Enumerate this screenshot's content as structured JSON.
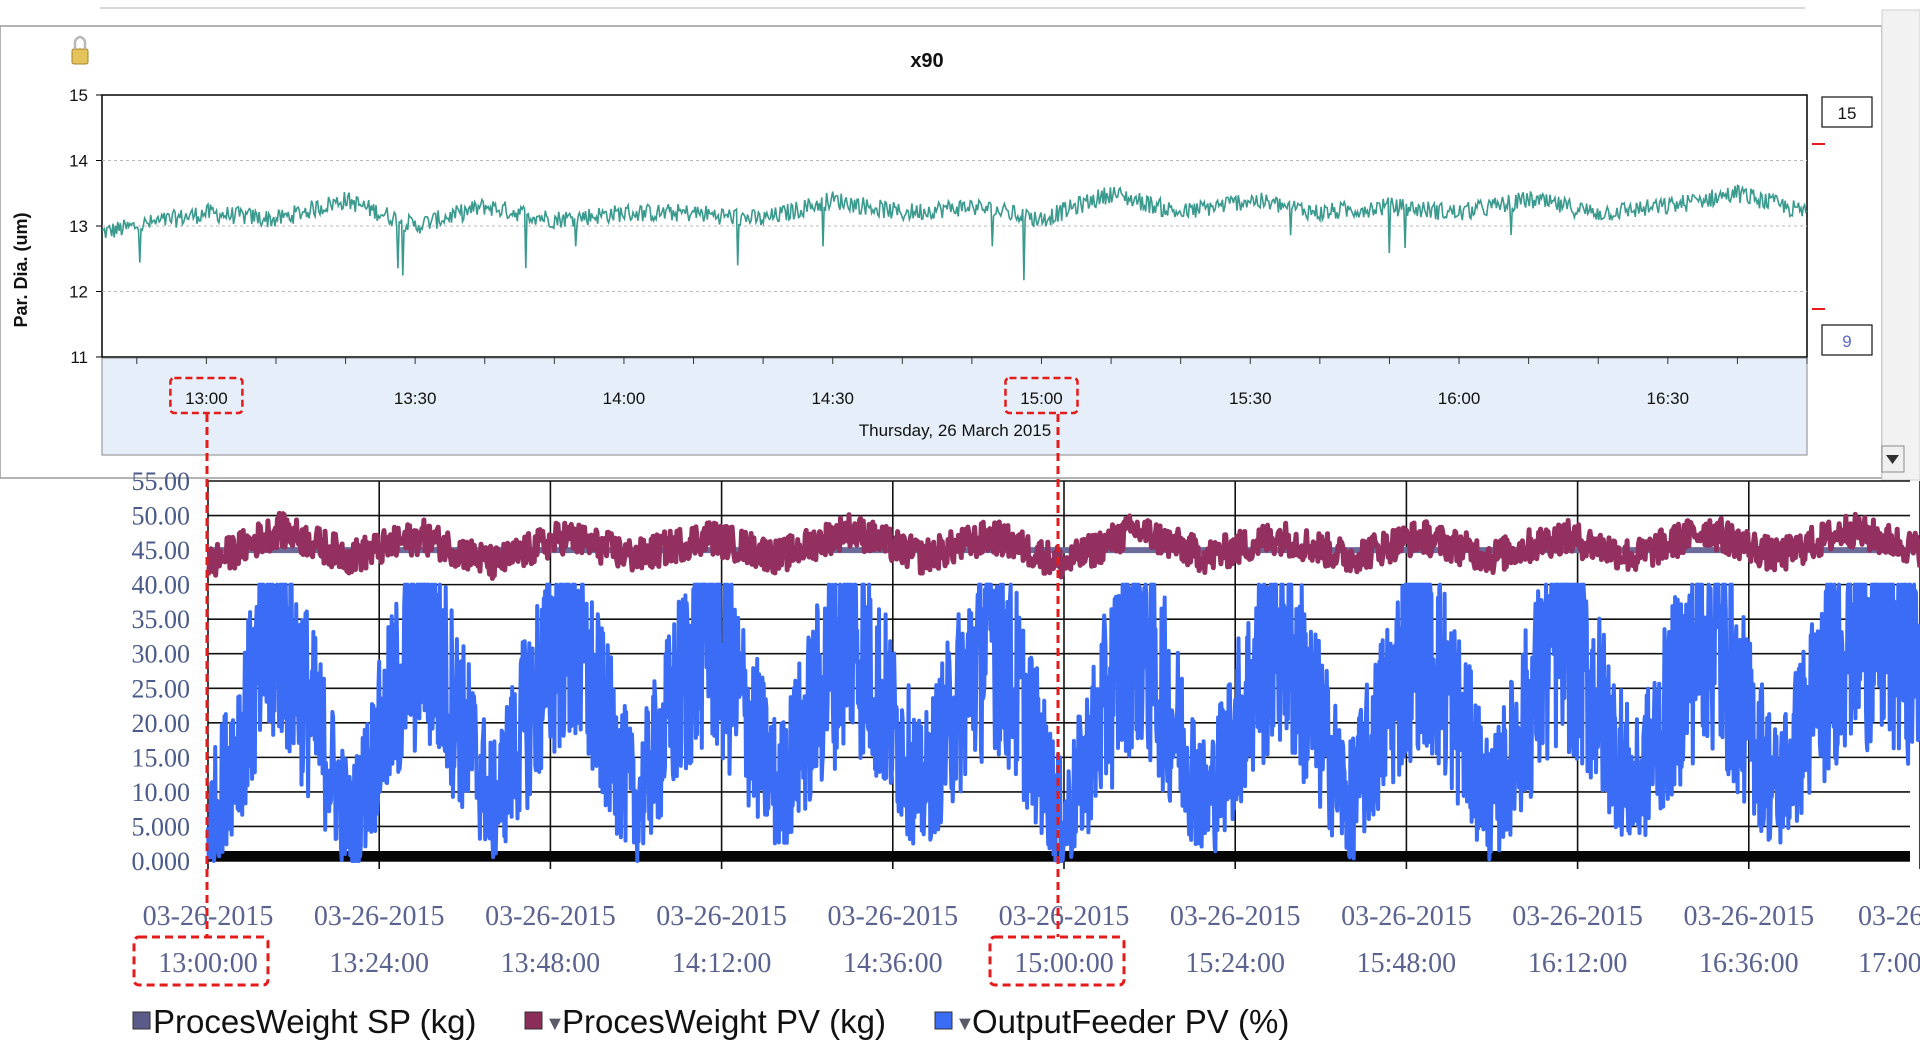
{
  "top_chart": {
    "title": "x90",
    "ylabel": "Par. Dia. (um)",
    "date_label": "Thursday, 26 March 2015",
    "right_box_top": "15",
    "right_box_bottom": "9",
    "lock_icon": "lock-icon",
    "scroll_icon": "scroll-down-arrow-icon"
  },
  "bottom_legend": [
    {
      "name": "ProcesWeight SP (kg)",
      "color": "#5b5b8a",
      "marker": ""
    },
    {
      "name": "ProcesWeight PV (kg)",
      "color": "#8b2d59",
      "marker": "▼"
    },
    {
      "name": "OutputFeeder PV (%)",
      "color": "#3b6cf5",
      "marker": "▼"
    }
  ],
  "colors": {
    "teal_series": "#3a9a8e",
    "sp_series": "#6b6b9a",
    "pv_series": "#93305f",
    "feeder_series": "#3b6cf5",
    "highlight": "#e31b1b",
    "axis_band": "#e6eff9"
  },
  "chart_data": [
    {
      "type": "line",
      "title": "x90",
      "xlabel": "Thursday, 26 March 2015",
      "ylabel": "Par. Dia. (um)",
      "ylim": [
        11,
        15
      ],
      "yticks": [
        "11",
        "12",
        "13",
        "14",
        "15"
      ],
      "xlim": [
        "12:45",
        "16:50"
      ],
      "xticks": [
        "13:00",
        "13:30",
        "14:00",
        "14:30",
        "15:00",
        "15:30",
        "16:00",
        "16:30"
      ],
      "grid": true,
      "series": [
        {
          "x": [
            "12:45",
            "13:00",
            "13:10",
            "13:20",
            "13:30",
            "13:40",
            "13:50",
            "14:00",
            "14:10",
            "14:20",
            "14:30",
            "14:40",
            "14:50",
            "15:00",
            "15:10",
            "15:20",
            "15:30",
            "15:40",
            "15:50",
            "16:00",
            "16:10",
            "16:20",
            "16:30",
            "16:40",
            "16:50"
          ],
          "values": [
            12.9,
            13.2,
            13.1,
            13.4,
            13.0,
            13.3,
            13.1,
            13.2,
            13.2,
            13.1,
            13.4,
            13.2,
            13.3,
            13.1,
            13.5,
            13.2,
            13.4,
            13.2,
            13.3,
            13.2,
            13.4,
            13.2,
            13.3,
            13.5,
            13.2
          ]
        }
      ]
    },
    {
      "type": "line",
      "legend": "bottom",
      "ylim": [
        0,
        55
      ],
      "yticks": [
        "0.000",
        "5.000",
        "10.00",
        "15.00",
        "20.00",
        "25.00",
        "30.00",
        "35.00",
        "40.00",
        "45.00",
        "50.00",
        "55.00"
      ],
      "xlim": [
        "13:00:00",
        "17:00:00"
      ],
      "xticks": [
        {
          "date": "03-26-2015",
          "time": "13:00:00"
        },
        {
          "date": "03-26-2015",
          "time": "13:24:00"
        },
        {
          "date": "03-26-2015",
          "time": "13:48:00"
        },
        {
          "date": "03-26-2015",
          "time": "14:12:00"
        },
        {
          "date": "03-26-2015",
          "time": "14:36:00"
        },
        {
          "date": "03-26-2015",
          "time": "15:00:00"
        },
        {
          "date": "03-26-2015",
          "time": "15:24:00"
        },
        {
          "date": "03-26-2015",
          "time": "15:48:00"
        },
        {
          "date": "03-26-2015",
          "time": "16:12:00"
        },
        {
          "date": "03-26-2015",
          "time": "16:36:00"
        },
        {
          "date": "03-26",
          "time": "17:00"
        }
      ],
      "grid": true,
      "series": [
        {
          "name": "ProcesWeight SP (kg)",
          "x": [
            "13:00:00",
            "17:00:00"
          ],
          "values": [
            45,
            45
          ]
        },
        {
          "name": "ProcesWeight PV (kg)",
          "x": [
            "13:00:00",
            "13:10:00",
            "13:20:00",
            "13:30:00",
            "13:40:00",
            "13:50:00",
            "14:00:00",
            "14:10:00",
            "14:20:00",
            "14:30:00",
            "14:40:00",
            "14:50:00",
            "15:00:00",
            "15:10:00",
            "15:20:00",
            "15:30:00",
            "15:40:00",
            "15:50:00",
            "16:00:00",
            "16:10:00",
            "16:20:00",
            "16:30:00",
            "16:40:00",
            "16:50:00",
            "17:00:00"
          ],
          "values": [
            43,
            48,
            44,
            47,
            43,
            47,
            44,
            47,
            44,
            48,
            44,
            47,
            43,
            48,
            44,
            47,
            44,
            47,
            44,
            47,
            44,
            48,
            44,
            48,
            45
          ]
        },
        {
          "name": "OutputFeeder PV (%)",
          "x": [
            "13:00:00",
            "13:10:00",
            "13:20:00",
            "13:30:00",
            "13:40:00",
            "13:50:00",
            "14:00:00",
            "14:10:00",
            "14:20:00",
            "14:30:00",
            "14:40:00",
            "14:50:00",
            "15:00:00",
            "15:10:00",
            "15:20:00",
            "15:30:00",
            "15:40:00",
            "15:50:00",
            "16:00:00",
            "16:10:00",
            "16:20:00",
            "16:30:00",
            "16:40:00",
            "16:50:00",
            "17:00:00"
          ],
          "values": [
            5,
            35,
            5,
            35,
            8,
            35,
            8,
            35,
            10,
            35,
            10,
            35,
            5,
            35,
            8,
            35,
            8,
            35,
            8,
            35,
            10,
            35,
            10,
            35,
            30
          ]
        }
      ]
    }
  ],
  "annotations": {
    "top_highlight_1": "13:00",
    "top_highlight_2": "15:00",
    "bottom_highlight_1": "13:00:00",
    "bottom_highlight_2": "15:00:00"
  }
}
